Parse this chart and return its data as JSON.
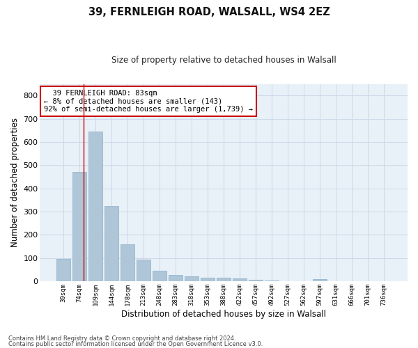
{
  "title1": "39, FERNLEIGH ROAD, WALSALL, WS4 2EZ",
  "title2": "Size of property relative to detached houses in Walsall",
  "xlabel": "Distribution of detached houses by size in Walsall",
  "ylabel": "Number of detached properties",
  "categories": [
    "39sqm",
    "74sqm",
    "109sqm",
    "144sqm",
    "178sqm",
    "213sqm",
    "248sqm",
    "283sqm",
    "318sqm",
    "353sqm",
    "388sqm",
    "422sqm",
    "457sqm",
    "492sqm",
    "527sqm",
    "562sqm",
    "597sqm",
    "631sqm",
    "666sqm",
    "701sqm",
    "736sqm"
  ],
  "values": [
    95,
    470,
    645,
    323,
    158,
    93,
    45,
    28,
    20,
    15,
    14,
    13,
    7,
    3,
    0,
    0,
    10,
    0,
    0,
    0,
    0
  ],
  "bar_color": "#aec6d8",
  "bar_edge_color": "#8dafc8",
  "grid_color": "#ccd9e8",
  "background_color": "#e8f0f8",
  "red_line_x": 1.27,
  "annotation_text": "  39 FERNLEIGH ROAD: 83sqm\n← 8% of detached houses are smaller (143)\n92% of semi-detached houses are larger (1,739) →",
  "annotation_box_color": "#ffffff",
  "annotation_border_color": "#cc0000",
  "footer1": "Contains HM Land Registry data © Crown copyright and database right 2024.",
  "footer2": "Contains public sector information licensed under the Open Government Licence v3.0.",
  "ylim": [
    0,
    850
  ],
  "yticks": [
    0,
    100,
    200,
    300,
    400,
    500,
    600,
    700,
    800
  ]
}
